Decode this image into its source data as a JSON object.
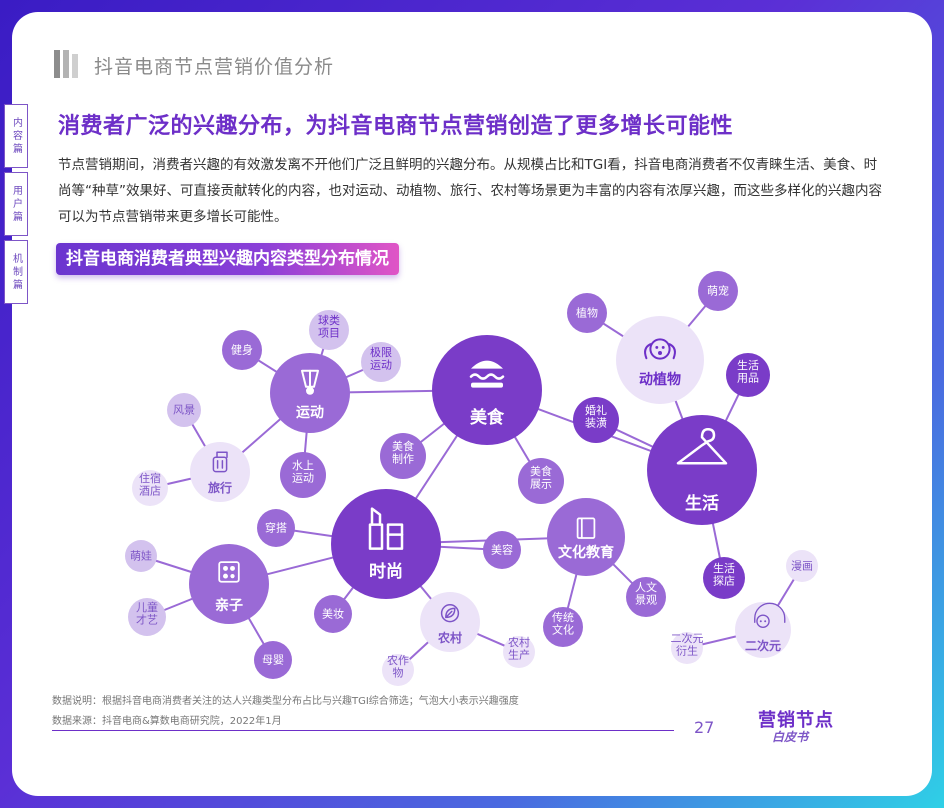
{
  "header": {
    "title": "抖音电商节点营销价值分析"
  },
  "side_nav": [
    {
      "label": "内容篇"
    },
    {
      "label": "用户篇"
    },
    {
      "label": "机制篇"
    }
  ],
  "headline": "消费者广泛的兴趣分布，为抖音电商节点营销创造了更多增长可能性",
  "body_text": "节点营销期间，消费者兴趣的有效激发离不开他们广泛且鲜明的兴趣分布。从规模占比和TGI看，抖音电商消费者不仅青睐生活、美食、时尚等“种草”效果好、可直接贡献转化的内容，也对运动、动植物、旅行、农村等场景更为丰富的内容有浓厚兴趣，而这些多样化的兴趣内容可以为节点营销带来更多增长可能性。",
  "subtitle": "抖音电商消费者典型兴趣内容类型分布情况",
  "bubble_chart": {
    "hubs": [
      {
        "id": "sport",
        "label": "运动",
        "icon": "badminton-shuttlecock-icon"
      },
      {
        "id": "food",
        "label": "美食",
        "icon": "burger-icon"
      },
      {
        "id": "animal",
        "label": "动植物",
        "icon": "dog-icon"
      },
      {
        "id": "life",
        "label": "生活",
        "icon": "clothes-hanger-icon"
      },
      {
        "id": "travel",
        "label": "旅行",
        "icon": "suitcase-icon"
      },
      {
        "id": "fashion",
        "label": "时尚",
        "icon": "lipstick-icon"
      },
      {
        "id": "culture",
        "label": "文化教育",
        "icon": "book-icon"
      },
      {
        "id": "parent",
        "label": "亲子",
        "icon": "family-icon"
      },
      {
        "id": "rural",
        "label": "农村",
        "icon": "leaf-icon"
      },
      {
        "id": "acg",
        "label": "二次元",
        "icon": "headphone-character-icon"
      }
    ],
    "children": [
      {
        "hub": "sport",
        "label": "健身"
      },
      {
        "hub": "sport",
        "label": "球类项目"
      },
      {
        "hub": "sport",
        "label": "极限运动"
      },
      {
        "hub": "sport",
        "label": "水上运动"
      },
      {
        "hub": "food",
        "label": "美食制作"
      },
      {
        "hub": "food",
        "label": "美食展示"
      },
      {
        "hub": "animal",
        "label": "植物"
      },
      {
        "hub": "animal",
        "label": "萌宠"
      },
      {
        "hub": "life",
        "label": "生活用品"
      },
      {
        "hub": "life",
        "label": "婚礼装潢"
      },
      {
        "hub": "life",
        "label": "生活探店"
      },
      {
        "hub": "travel",
        "label": "风景"
      },
      {
        "hub": "travel",
        "label": "住宿酒店"
      },
      {
        "hub": "fashion",
        "label": "穿搭"
      },
      {
        "hub": "fashion",
        "label": "美容"
      },
      {
        "hub": "fashion",
        "label": "美妆"
      },
      {
        "hub": "culture",
        "label": "传统文化"
      },
      {
        "hub": "culture",
        "label": "人文景观"
      },
      {
        "hub": "parent",
        "label": "萌娃"
      },
      {
        "hub": "parent",
        "label": "儿童才艺"
      },
      {
        "hub": "parent",
        "label": "母婴"
      },
      {
        "hub": "rural",
        "label": "农作物"
      },
      {
        "hub": "rural",
        "label": "农村生产"
      },
      {
        "hub": "acg",
        "label": "漫画"
      },
      {
        "hub": "acg",
        "label": "二次元衍生"
      }
    ]
  },
  "source_note": "数据说明：根据抖音电商消费者关注的达人兴趣类型分布占比与兴趣TGI综合筛选；气泡大小表示兴趣强度",
  "source_ref": "数据来源：抖音电商&算数电商研究院，2022年1月",
  "page_number": "27",
  "logo": {
    "top": "营销节点",
    "bottom": "白皮书"
  },
  "colors": {
    "accent": "#6d2fc8",
    "hub_dark": "#7a3cc8",
    "hub_mid": "#9a6ad6",
    "hub_light": "#d3c2ee"
  }
}
